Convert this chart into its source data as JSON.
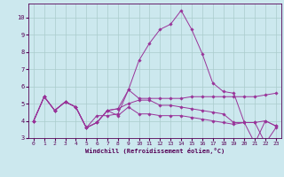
{
  "xlabel": "Windchill (Refroidissement éolien,°C)",
  "background_color": "#cce8ee",
  "grid_color": "#aacccc",
  "line_color": "#993399",
  "xlim": [
    -0.5,
    23.5
  ],
  "ylim": [
    3.0,
    10.8
  ],
  "yticks": [
    3,
    4,
    5,
    6,
    7,
    8,
    9,
    10
  ],
  "xticks": [
    0,
    1,
    2,
    3,
    4,
    5,
    6,
    7,
    8,
    9,
    10,
    11,
    12,
    13,
    14,
    15,
    16,
    17,
    18,
    19,
    20,
    21,
    22,
    23
  ],
  "lines": [
    [
      4.0,
      5.4,
      4.6,
      5.1,
      4.8,
      3.6,
      4.3,
      4.3,
      4.4,
      5.8,
      5.3,
      5.3,
      5.3,
      5.3,
      5.3,
      5.4,
      5.4,
      5.4,
      5.4,
      5.4,
      5.4,
      5.4,
      5.5,
      5.6
    ],
    [
      4.0,
      5.4,
      4.6,
      5.1,
      4.8,
      3.6,
      3.9,
      4.6,
      4.3,
      4.8,
      4.4,
      4.4,
      4.3,
      4.3,
      4.3,
      4.2,
      4.1,
      4.0,
      3.9,
      3.8,
      3.9,
      3.9,
      4.0,
      3.7
    ],
    [
      4.0,
      5.4,
      4.6,
      5.1,
      4.8,
      3.6,
      3.9,
      4.6,
      4.7,
      5.8,
      7.5,
      8.5,
      9.3,
      9.6,
      10.4,
      9.3,
      7.9,
      6.2,
      5.7,
      5.6,
      3.9,
      3.9,
      2.7,
      3.6
    ],
    [
      4.0,
      5.4,
      4.6,
      5.1,
      4.8,
      3.6,
      3.9,
      4.6,
      4.7,
      5.0,
      5.2,
      5.2,
      4.9,
      4.9,
      4.8,
      4.7,
      4.6,
      4.5,
      4.4,
      3.9,
      3.9,
      2.7,
      4.0,
      3.7
    ]
  ]
}
